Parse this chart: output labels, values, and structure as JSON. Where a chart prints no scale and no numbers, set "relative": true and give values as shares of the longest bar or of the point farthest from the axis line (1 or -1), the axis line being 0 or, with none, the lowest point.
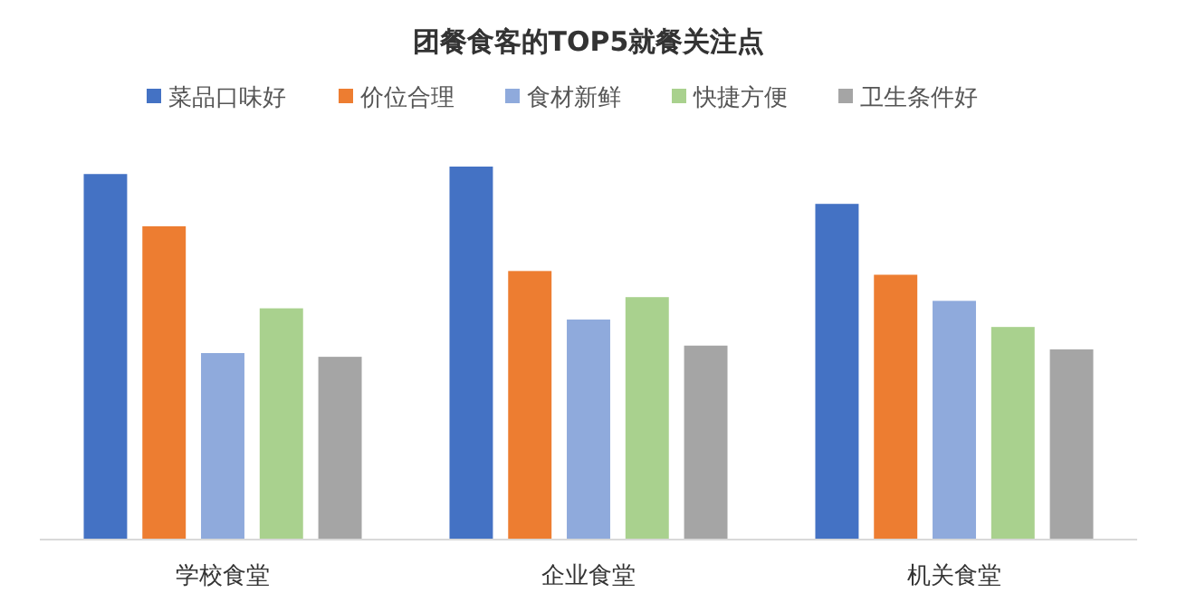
{
  "chart_data": {
    "type": "bar",
    "title": "团餐食客的TOP5就餐关注点",
    "categories": [
      "学校食堂",
      "企业食堂",
      "机关食堂"
    ],
    "relative": true,
    "legend": "top",
    "series": [
      {
        "name": "菜品口味好",
        "color": "#4472c4",
        "values": [
          0.98,
          1,
          0.9
        ]
      },
      {
        "name": "价位合理",
        "color": "#ed7d31",
        "values": [
          0.84,
          0.72,
          0.71
        ]
      },
      {
        "name": "食材新鲜",
        "color": "#8faadc",
        "values": [
          0.5,
          0.59,
          0.64
        ]
      },
      {
        "name": "快捷方便",
        "color": "#a9d18e",
        "values": [
          0.62,
          0.65,
          0.57
        ]
      },
      {
        "name": "卫生条件好",
        "color": "#a5a5a5",
        "values": [
          0.49,
          0.52,
          0.51
        ]
      }
    ]
  }
}
